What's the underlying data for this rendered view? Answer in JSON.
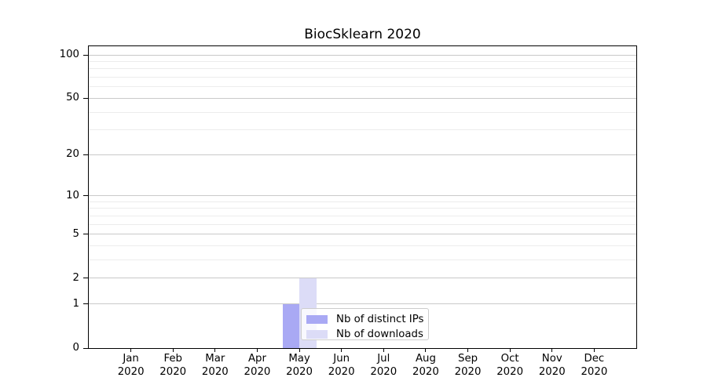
{
  "chart_data": {
    "type": "bar",
    "title": "BiocSklearn 2020",
    "yscale": "log1p",
    "ylim": [
      0,
      115
    ],
    "y_major_ticks": [
      0,
      1,
      2,
      5,
      10,
      20,
      50,
      100
    ],
    "y_minor_gridlines": [
      3,
      4,
      6,
      7,
      8,
      9,
      30,
      40,
      60,
      70,
      80,
      90
    ],
    "grid": "horizontal only, major and minor",
    "x_tick_labels": [
      {
        "month": "Jan",
        "year": "2020"
      },
      {
        "month": "Feb",
        "year": "2020"
      },
      {
        "month": "Mar",
        "year": "2020"
      },
      {
        "month": "Apr",
        "year": "2020"
      },
      {
        "month": "May",
        "year": "2020"
      },
      {
        "month": "Jun",
        "year": "2020"
      },
      {
        "month": "Jul",
        "year": "2020"
      },
      {
        "month": "Aug",
        "year": "2020"
      },
      {
        "month": "Sep",
        "year": "2020"
      },
      {
        "month": "Oct",
        "year": "2020"
      },
      {
        "month": "Nov",
        "year": "2020"
      },
      {
        "month": "Dec",
        "year": "2020"
      }
    ],
    "series": [
      {
        "name": "Nb of distinct IPs",
        "color": "#a9a9f4",
        "values": [
          0,
          0,
          0,
          0,
          1,
          0,
          0,
          0,
          0,
          0,
          0,
          0
        ]
      },
      {
        "name": "Nb of downloads",
        "color": "#dcdcf7",
        "values": [
          0,
          0,
          0,
          0,
          2,
          0,
          0,
          0,
          0,
          0,
          0,
          0
        ]
      }
    ],
    "legend_position": "inside plot, lower center"
  },
  "legend": {
    "items": [
      {
        "label": "Nb of distinct IPs",
        "color": "#a9a9f4"
      },
      {
        "label": "Nb of downloads",
        "color": "#dcdcf7"
      }
    ]
  },
  "colors": {
    "axis": "#000000",
    "major_grid": "#c9c9c9",
    "minor_grid": "#ececec",
    "background": "#ffffff"
  }
}
